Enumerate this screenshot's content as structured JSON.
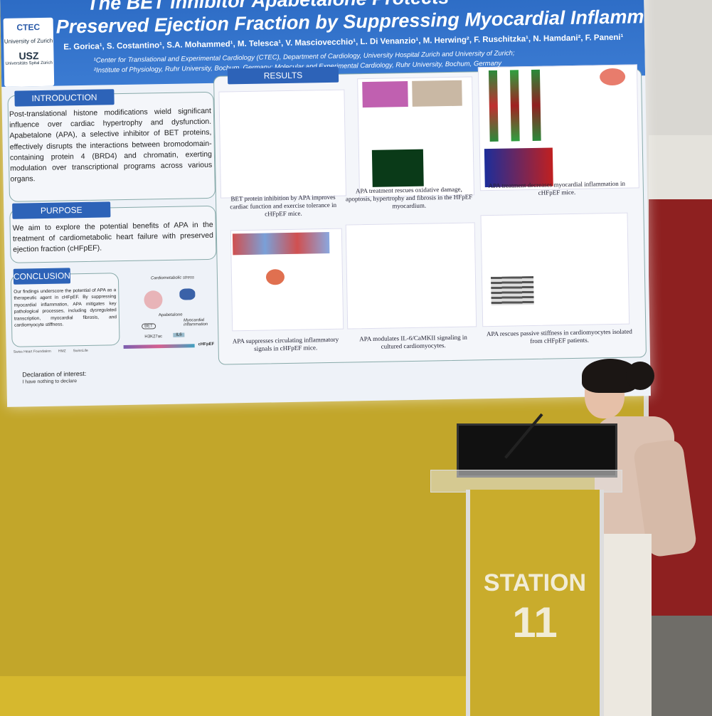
{
  "poster": {
    "title_lines": [
      "The BET inhibitor Apabetalone Protects",
      "Preserved Ejection Fraction by Suppressing Myocardial Inflamma"
    ],
    "authors": "E. Gorica¹, S. Costantino¹, S.A. Mohammed¹, M. Telesca¹, V. Masciovecchio¹, L. Di Venanzio¹, M. Herwing², F. Ruschitzka¹, N. Hamdani², F. Paneni¹",
    "affiliations": [
      "¹Center for Translational and Experimental Cardiology (CTEC), Department of Cardiology, University Hospital Zurich and University of Zurich;",
      "²Institute of Physiology, Ruhr University, Bochum, Germany; Molecular and Experimental Cardiology, Ruhr University, Bochum, Germany"
    ],
    "logos": [
      "CTEC",
      "University of Zurich",
      "USZ",
      "Universitäts Spital Zürich"
    ],
    "introduction": {
      "heading": "INTRODUCTION",
      "text": "Post-translational histone modifications wield significant influence over cardiac hypertrophy and dysfunction. Apabetalone (APA), a selective inhibitor of BET proteins, effectively disrupts the interactions between bromodomain-containing protein 4 (BRD4) and chromatin, exerting modulation over transcriptional programs across various organs."
    },
    "purpose": {
      "heading": "PURPOSE",
      "text": "We aim to explore the potential benefits of APA in the treatment of cardiometabolic heart failure with preserved ejection fraction (cHFpEF)."
    },
    "conclusion": {
      "heading": "CONCLUSION",
      "text": "Our findings underscore the potential of APA as a therapeutic agent in cHFpEF. By suppressing myocardial inflammation, APA mitigates key pathological processes, including dysregulated transcription, myocardial fibrosis, and cardiomyocyte stiffness.",
      "diagram_labels": [
        "Cardiometabolic stress",
        "Apabetalone",
        "BET",
        "H3K27ac",
        "IL6",
        "Myocardial inflammation",
        "cHFpEF"
      ]
    },
    "sponsors": [
      "Swiss Heart Foundation",
      "HMZ",
      "SwissLife"
    ],
    "declaration": {
      "heading": "Declaration of interest:",
      "text": "I have nothing to declare"
    },
    "results": {
      "heading": "RESULTS",
      "captions": [
        "BET protein inhibition by APA improves cardiac function and exercise tolerance in cHFpEF mice.",
        "APA treatment rescues oxidative damage, apoptosis, hypertrophy and fibrosis in the HFpEF myocardium.",
        "APA treatment decreases myocardial inflammation in cHFpEF mice.",
        "APA suppresses circulating inflammatory signals in cHFpEF mice.",
        "APA modulates IL-6/CaMKII signaling in cultured cardiomyocytes.",
        "APA rescues passive stiffness in cardiomyocytes isolated from cHFpEF patients."
      ]
    }
  },
  "podium": {
    "label": "STATION",
    "number": "11"
  }
}
